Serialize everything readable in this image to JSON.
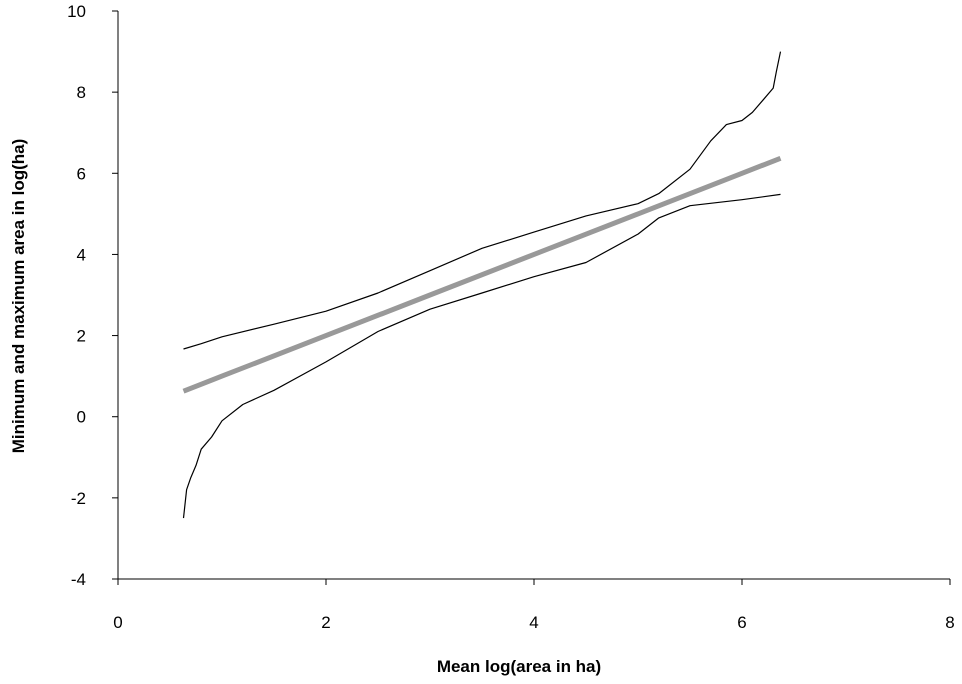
{
  "chart_data": {
    "type": "line",
    "title": "",
    "xlabel": "Mean log(area in ha)",
    "ylabel": "Minimum  and  maximum  area  in  log(ha)",
    "xlim": [
      0,
      8
    ],
    "ylim": [
      -4,
      10
    ],
    "xticks": [
      0,
      2,
      4,
      6,
      8
    ],
    "yticks": [
      -4,
      -2,
      0,
      2,
      4,
      6,
      8,
      10
    ],
    "grid": false,
    "series": [
      {
        "color": "#999999",
        "style": "thick",
        "x": [
          0.63,
          1.0,
          2.0,
          3.0,
          4.0,
          5.0,
          6.0,
          6.37
        ],
        "y": [
          0.63,
          1.0,
          2.0,
          3.0,
          4.0,
          5.0,
          6.0,
          6.37
        ]
      },
      {
        "color": "#000000",
        "style": "thin",
        "x": [
          0.63,
          0.8,
          1.0,
          1.5,
          2.0,
          2.5,
          3.0,
          3.5,
          4.0,
          4.5,
          5.0,
          5.2,
          5.5,
          5.7,
          5.85,
          6.0,
          6.1,
          6.2,
          6.3,
          6.33,
          6.37
        ],
        "y": [
          1.67,
          1.8,
          1.97,
          2.28,
          2.6,
          3.05,
          3.6,
          4.15,
          4.55,
          4.95,
          5.25,
          5.5,
          6.1,
          6.8,
          7.2,
          7.3,
          7.5,
          7.8,
          8.1,
          8.5,
          9.0
        ]
      },
      {
        "color": "#000000",
        "style": "thin",
        "x": [
          0.63,
          0.66,
          0.7,
          0.75,
          0.8,
          0.9,
          1.0,
          1.2,
          1.5,
          2.0,
          2.5,
          3.0,
          3.5,
          4.0,
          4.5,
          5.0,
          5.2,
          5.5,
          6.0,
          6.37
        ],
        "y": [
          -2.5,
          -1.8,
          -1.5,
          -1.2,
          -0.8,
          -0.5,
          -0.1,
          0.3,
          0.65,
          1.35,
          2.1,
          2.65,
          3.05,
          3.45,
          3.8,
          4.5,
          4.9,
          5.2,
          5.35,
          5.48
        ]
      }
    ]
  }
}
